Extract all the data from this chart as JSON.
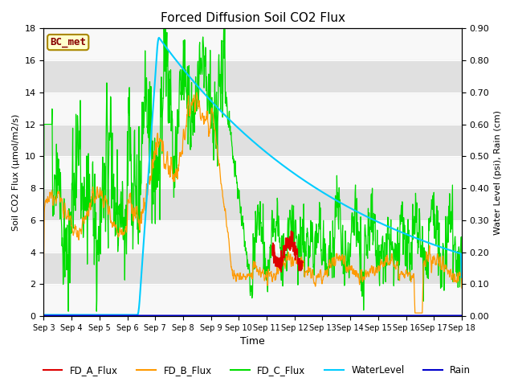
{
  "title": "Forced Diffusion Soil CO2 Flux",
  "xlabel": "Time",
  "ylabel_left": "Soil CO2 Flux (μmol/m2/s)",
  "ylabel_right": "Water Level (psi), Rain (cm)",
  "xlim": [
    0,
    15
  ],
  "ylim_left": [
    0,
    18
  ],
  "ylim_right": [
    0.0,
    0.9
  ],
  "yticks_left": [
    0,
    2,
    4,
    6,
    8,
    10,
    12,
    14,
    16,
    18
  ],
  "yticks_right": [
    0.0,
    0.1,
    0.2,
    0.3,
    0.4,
    0.5,
    0.6,
    0.7,
    0.8,
    0.9
  ],
  "xtick_labels": [
    "Sep 3",
    "Sep 4",
    "Sep 5",
    "Sep 6",
    "Sep 7",
    "Sep 8",
    "Sep 9",
    "Sep 10",
    "Sep 11",
    "Sep 12",
    "Sep 13",
    "Sep 14",
    "Sep 15",
    "Sep 16",
    "Sep 17",
    "Sep 18"
  ],
  "colors": {
    "FD_A_Flux": "#dd0000",
    "FD_B_Flux": "#ff9900",
    "FD_C_Flux": "#00dd00",
    "WaterLevel": "#00ccff",
    "Rain": "#0000cc"
  },
  "legend_label": "BC_met",
  "band_color": "#e0e0e0",
  "bg_color": "#f8f8f8"
}
